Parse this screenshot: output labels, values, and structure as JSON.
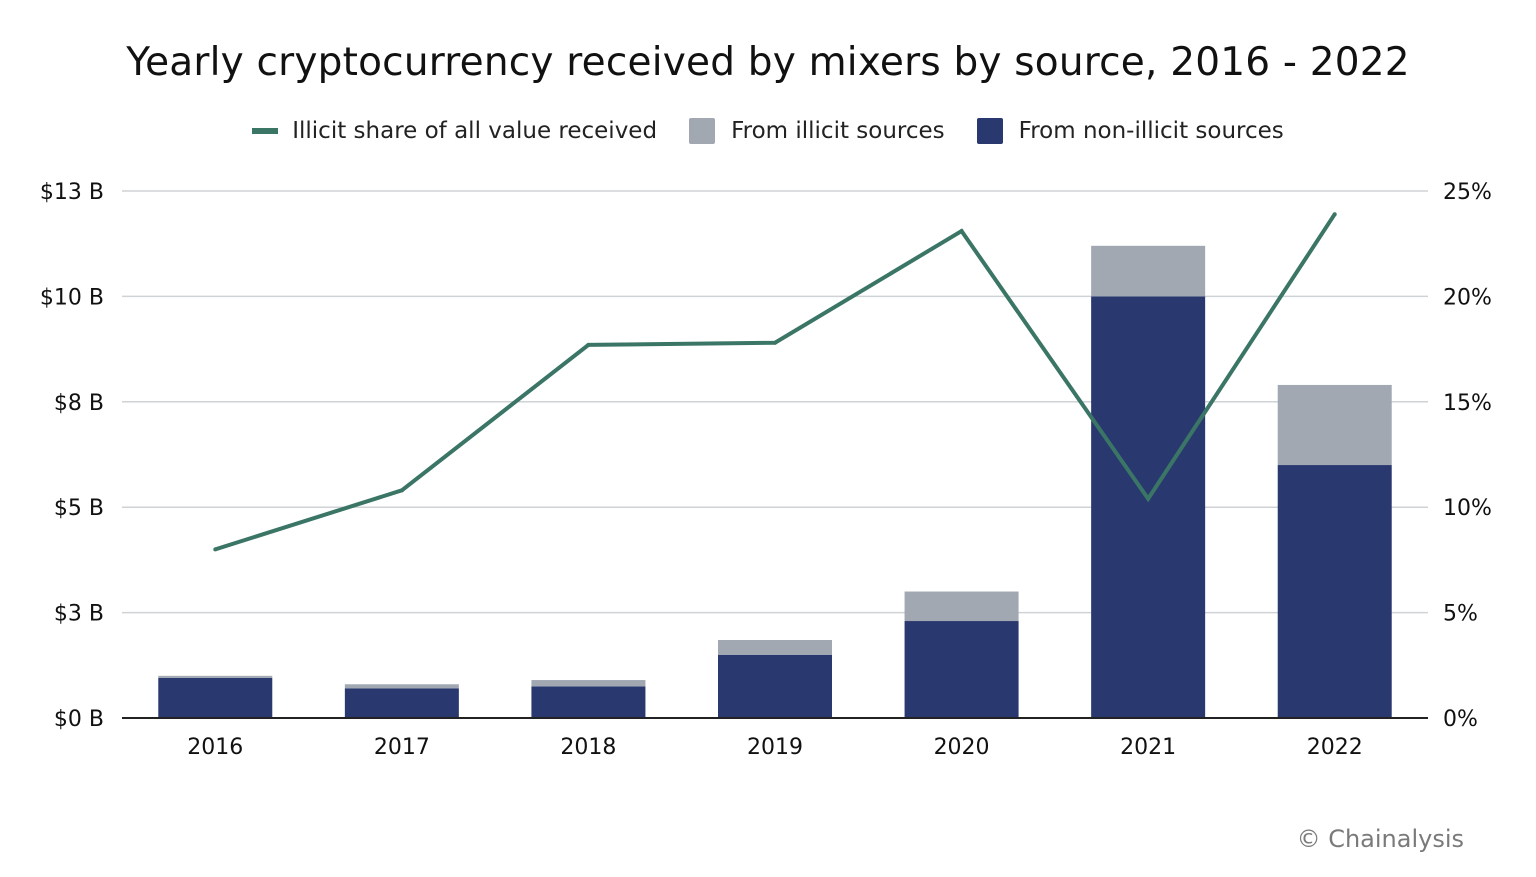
{
  "chart_data": {
    "type": "bar",
    "stacked": true,
    "title": "Yearly cryptocurrency received by mixers by source, 2016 - 2022",
    "categories": [
      "2016",
      "2017",
      "2018",
      "2019",
      "2020",
      "2021",
      "2022"
    ],
    "series": [
      {
        "name": "From non-illicit sources",
        "kind": "bar",
        "axis": "left",
        "color": "#29386e",
        "values": [
          0.95,
          0.7,
          0.75,
          1.5,
          2.3,
          10.0,
          6.0
        ]
      },
      {
        "name": "From illicit sources",
        "kind": "bar",
        "axis": "left",
        "color": "#a1a8b2",
        "values": [
          0.05,
          0.1,
          0.15,
          0.35,
          0.7,
          1.2,
          1.9
        ]
      },
      {
        "name": "Illicit share of all value received",
        "kind": "line",
        "axis": "right",
        "color": "#3a7566",
        "values": [
          8.0,
          10.8,
          17.7,
          17.8,
          23.1,
          10.4,
          23.9
        ]
      }
    ],
    "y_left": {
      "ticks": [
        "$0 B",
        "$3 B",
        "$5 B",
        "$8 B",
        "$10 B",
        "$13 B"
      ],
      "ylim": [
        0,
        12.5
      ]
    },
    "y_right": {
      "ticks": [
        "0%",
        "5%",
        "10%",
        "15%",
        "20%",
        "25%"
      ],
      "ylim": [
        0,
        25
      ]
    },
    "grid": true,
    "legend_position": "top-center",
    "legend_order": [
      2,
      1,
      0
    ]
  },
  "watermark": "© Chainalysis"
}
